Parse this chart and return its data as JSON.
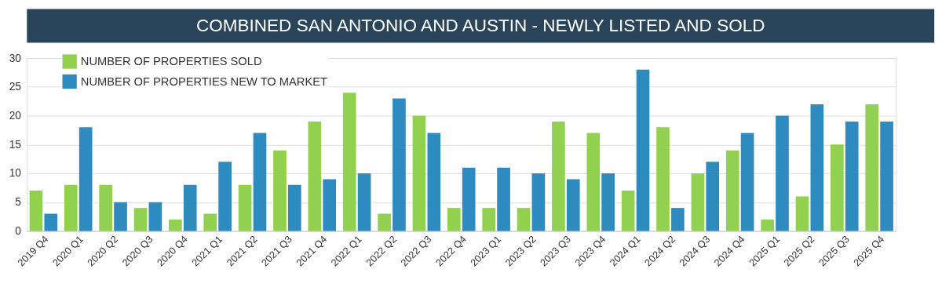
{
  "chart_data": {
    "type": "bar",
    "title": "COMBINED SAN ANTONIO AND AUSTIN - NEWLY LISTED AND SOLD",
    "categories": [
      "2019 Q4",
      "2020 Q1",
      "2020 Q2",
      "2020 Q3",
      "2020 Q4",
      "2021 Q1",
      "2021 Q2",
      "2021 Q3",
      "2021 Q4",
      "2022 Q1",
      "2022 Q2",
      "2022 Q3",
      "2022 Q4",
      "2023 Q1",
      "2023 Q2",
      "2023 Q3",
      "2023 Q4",
      "2024 Q1",
      "2024 Q2",
      "2024 Q3",
      "2024 Q4",
      "2025 Q1",
      "2025 Q2",
      "2025 Q3",
      "2025 Q4"
    ],
    "series": [
      {
        "name": "NUMBER OF PROPERTIES SOLD",
        "color": "#92d050",
        "values": [
          7,
          8,
          8,
          4,
          2,
          3,
          8,
          14,
          19,
          24,
          3,
          20,
          4,
          4,
          4,
          19,
          17,
          7,
          18,
          10,
          14,
          2,
          6,
          15,
          22
        ]
      },
      {
        "name": "NUMBER OF PROPERTIES NEW TO MARKET",
        "color": "#2e8bc0",
        "values": [
          3,
          18,
          5,
          5,
          8,
          12,
          17,
          8,
          9,
          10,
          23,
          17,
          11,
          11,
          10,
          9,
          10,
          28,
          4,
          12,
          17,
          20,
          22,
          19,
          19
        ]
      }
    ],
    "ylim": [
      0,
      30
    ],
    "yticks": [
      0,
      5,
      10,
      15,
      20,
      25,
      30
    ],
    "grid": "y",
    "legend": "top left"
  }
}
